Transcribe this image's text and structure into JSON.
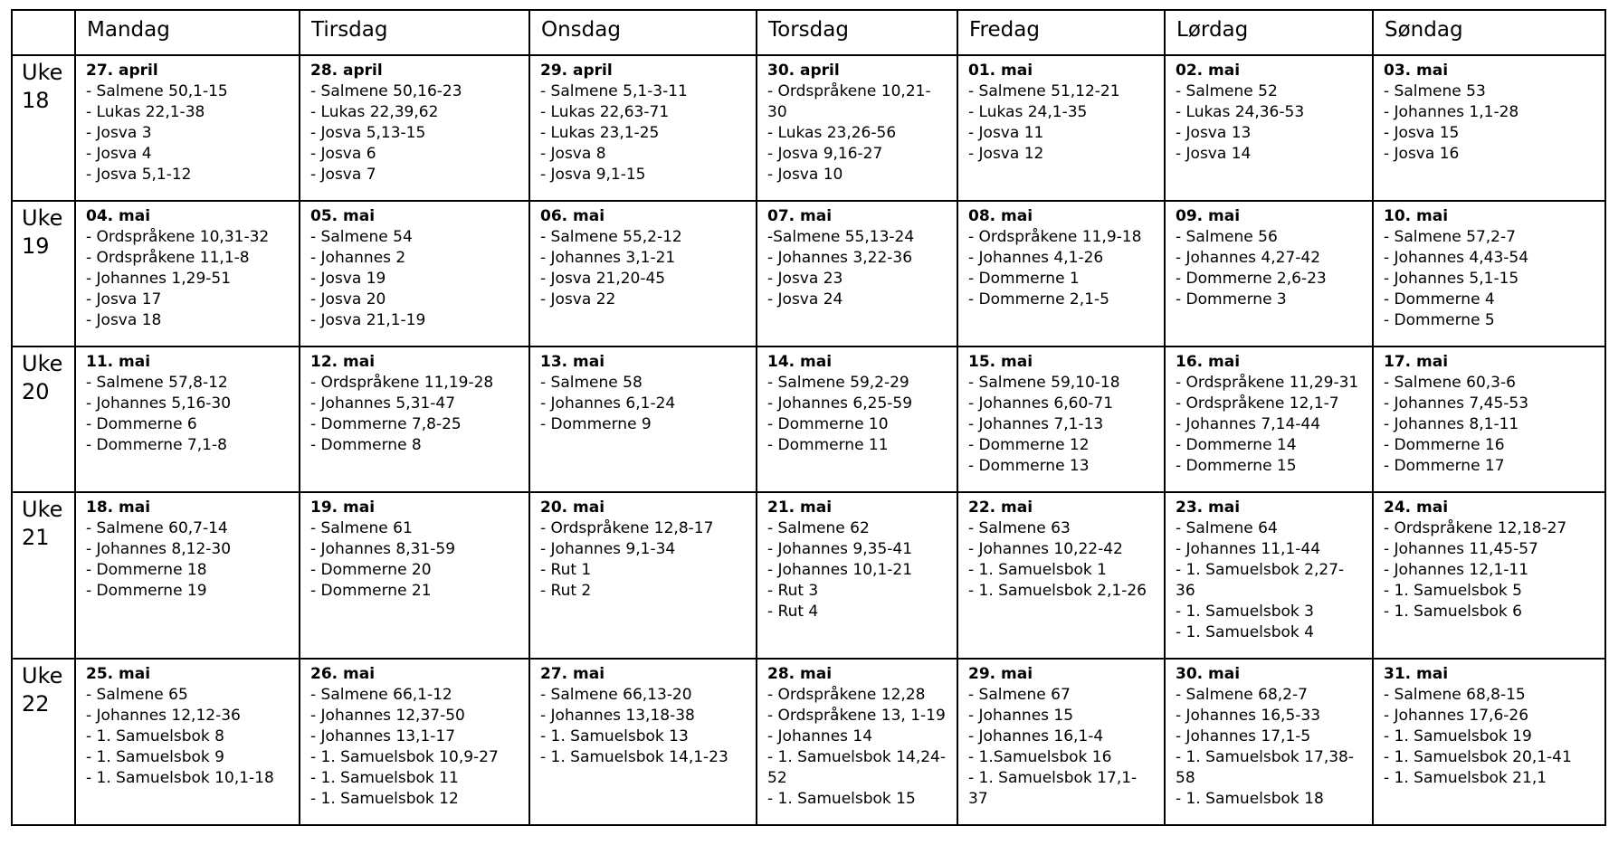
{
  "table": {
    "day_headers": [
      "Mandag",
      "Tirsdag",
      "Onsdag",
      "Torsdag",
      "Fredag",
      "Lørdag",
      "Søndag"
    ],
    "weeks": [
      {
        "label": "Uke 18",
        "days": [
          {
            "date": "27. april",
            "readings": [
              "- Salmene 50,1-15",
              "- Lukas 22,1-38",
              "- Josva 3",
              "- Josva 4",
              "- Josva 5,1-12"
            ]
          },
          {
            "date": "28. april",
            "readings": [
              "- Salmene 50,16-23",
              "- Lukas 22,39,62",
              "- Josva 5,13-15",
              "- Josva 6",
              "- Josva 7"
            ]
          },
          {
            "date": "29. april",
            "readings": [
              "- Salmene 5,1-3-11",
              "- Lukas 22,63-71",
              "- Lukas 23,1-25",
              "- Josva 8",
              "- Josva 9,1-15"
            ]
          },
          {
            "date": "30. april",
            "readings": [
              "- Ordspråkene 10,21-30",
              "- Lukas 23,26-56",
              "- Josva 9,16-27",
              "- Josva 10"
            ]
          },
          {
            "date": "01. mai",
            "readings": [
              "- Salmene 51,12-21",
              "- Lukas 24,1-35",
              "- Josva 11",
              "- Josva 12"
            ]
          },
          {
            "date": "02. mai",
            "readings": [
              "- Salmene 52",
              "- Lukas 24,36-53",
              "- Josva 13",
              "- Josva 14"
            ]
          },
          {
            "date": "03. mai",
            "readings": [
              "- Salmene 53",
              "- Johannes 1,1-28",
              "- Josva 15",
              "- Josva 16"
            ]
          }
        ]
      },
      {
        "label": "Uke 19",
        "days": [
          {
            "date": "04. mai",
            "readings": [
              "- Ordspråkene 10,31-32",
              "- Ordspråkene 11,1-8",
              "- Johannes 1,29-51",
              "- Josva 17",
              "- Josva 18"
            ]
          },
          {
            "date": "05. mai",
            "readings": [
              "- Salmene 54",
              "- Johannes 2",
              "- Josva 19",
              "- Josva 20",
              "- Josva 21,1-19"
            ]
          },
          {
            "date": "06. mai",
            "readings": [
              "- Salmene 55,2-12",
              "- Johannes 3,1-21",
              "- Josva 21,20-45",
              "- Josva 22"
            ]
          },
          {
            "date": "07. mai",
            "readings": [
              "-Salmene 55,13-24",
              "- Johannes 3,22-36",
              "- Josva 23",
              "- Josva 24"
            ]
          },
          {
            "date": "08. mai",
            "readings": [
              "- Ordspråkene 11,9-18",
              "- Johannes 4,1-26",
              "- Dommerne 1",
              "- Dommerne 2,1-5"
            ]
          },
          {
            "date": "09. mai",
            "readings": [
              "- Salmene 56",
              "- Johannes 4,27-42",
              "- Dommerne 2,6-23",
              "- Dommerne 3"
            ]
          },
          {
            "date": "10. mai",
            "readings": [
              "- Salmene 57,2-7",
              "- Johannes 4,43-54",
              "- Johannes 5,1-15",
              "- Dommerne 4",
              "- Dommerne 5"
            ]
          }
        ]
      },
      {
        "label": "Uke 20",
        "days": [
          {
            "date": "11. mai",
            "readings": [
              "- Salmene 57,8-12",
              "- Johannes 5,16-30",
              "- Dommerne 6",
              "- Dommerne 7,1-8"
            ]
          },
          {
            "date": "12. mai",
            "readings": [
              "- Ordspråkene 11,19-28",
              "- Johannes 5,31-47",
              "- Dommerne 7,8-25",
              "- Dommerne 8"
            ]
          },
          {
            "date": "13. mai",
            "readings": [
              "- Salmene 58",
              "- Johannes 6,1-24",
              "- Dommerne 9"
            ]
          },
          {
            "date": "14. mai",
            "readings": [
              "- Salmene 59,2-29",
              "- Johannes 6,25-59",
              "- Dommerne 10",
              "- Dommerne 11"
            ]
          },
          {
            "date": "15. mai",
            "readings": [
              "- Salmene 59,10-18",
              "- Johannes 6,60-71",
              "- Johannes 7,1-13",
              "- Dommerne 12",
              "- Dommerne 13"
            ]
          },
          {
            "date": "16. mai",
            "readings": [
              "- Ordspråkene 11,29-31",
              "- Ordspråkene 12,1-7",
              "- Johannes 7,14-44",
              "- Dommerne 14",
              "- Dommerne 15"
            ]
          },
          {
            "date": "17. mai",
            "readings": [
              "- Salmene 60,3-6",
              "- Johannes 7,45-53",
              "- Johannes 8,1-11",
              "- Dommerne 16",
              "- Dommerne 17"
            ]
          }
        ]
      },
      {
        "label": "Uke 21",
        "days": [
          {
            "date": "18. mai",
            "readings": [
              "- Salmene 60,7-14",
              "- Johannes 8,12-30",
              "- Dommerne 18",
              "- Dommerne 19"
            ]
          },
          {
            "date": "19. mai",
            "readings": [
              "- Salmene 61",
              "- Johannes 8,31-59",
              "- Dommerne 20",
              "- Dommerne 21"
            ]
          },
          {
            "date": "20. mai",
            "readings": [
              "- Ordspråkene 12,8-17",
              "- Johannes 9,1-34",
              "- Rut 1",
              "- Rut 2"
            ]
          },
          {
            "date": "21. mai",
            "readings": [
              "- Salmene 62",
              "- Johannes 9,35-41",
              "- Johannes 10,1-21",
              "- Rut 3",
              "- Rut 4"
            ]
          },
          {
            "date": "22. mai",
            "readings": [
              "- Salmene 63",
              "- Johannes 10,22-42",
              "- 1. Samuelsbok 1",
              "- 1. Samuelsbok 2,1-26"
            ]
          },
          {
            "date": "23. mai",
            "readings": [
              "- Salmene 64",
              "- Johannes 11,1-44",
              "- 1. Samuelsbok 2,27-36",
              "- 1. Samuelsbok 3",
              "- 1. Samuelsbok 4"
            ]
          },
          {
            "date": "24. mai",
            "readings": [
              "- Ordspråkene 12,18-27",
              "- Johannes 11,45-57",
              "- Johannes 12,1-11",
              "- 1. Samuelsbok 5",
              "- 1. Samuelsbok 6"
            ]
          }
        ]
      },
      {
        "label": "Uke 22",
        "days": [
          {
            "date": "25. mai",
            "readings": [
              "- Salmene 65",
              "- Johannes 12,12-36",
              "- 1. Samuelsbok 8",
              "- 1. Samuelsbok 9",
              "- 1. Samuelsbok 10,1-18"
            ]
          },
          {
            "date": "26. mai",
            "readings": [
              "- Salmene 66,1-12",
              "- Johannes 12,37-50",
              "- Johannes 13,1-17",
              "- 1. Samuelsbok 10,9-27",
              "- 1. Samuelsbok 11",
              "- 1. Samuelsbok 12"
            ]
          },
          {
            "date": "27. mai",
            "readings": [
              "- Salmene 66,13-20",
              "- Johannes 13,18-38",
              "- 1. Samuelsbok 13",
              "- 1. Samuelsbok 14,1-23"
            ]
          },
          {
            "date": "28. mai",
            "readings": [
              "- Ordspråkene 12,28",
              "- Ordspråkene 13, 1-19",
              "- Johannes 14",
              "- 1. Samuelsbok 14,24-52",
              "- 1. Samuelsbok 15"
            ]
          },
          {
            "date": "29. mai",
            "readings": [
              "- Salmene 67",
              "- Johannes 15",
              "- Johannes 16,1-4",
              "- 1.Samuelsbok 16",
              "- 1. Samuelsbok 17,1-37"
            ]
          },
          {
            "date": "30. mai",
            "readings": [
              "- Salmene 68,2-7",
              "- Johannes 16,5-33",
              "- Johannes 17,1-5",
              "- 1. Samuelsbok 17,38-58",
              "- 1. Samuelsbok 18"
            ]
          },
          {
            "date": "31. mai",
            "readings": [
              "- Salmene 68,8-15",
              "- Johannes 17,6-26",
              "- 1. Samuelsbok 19",
              "- 1. Samuelsbok 20,1-41",
              "- 1. Samuelsbok 21,1"
            ]
          }
        ]
      }
    ]
  }
}
